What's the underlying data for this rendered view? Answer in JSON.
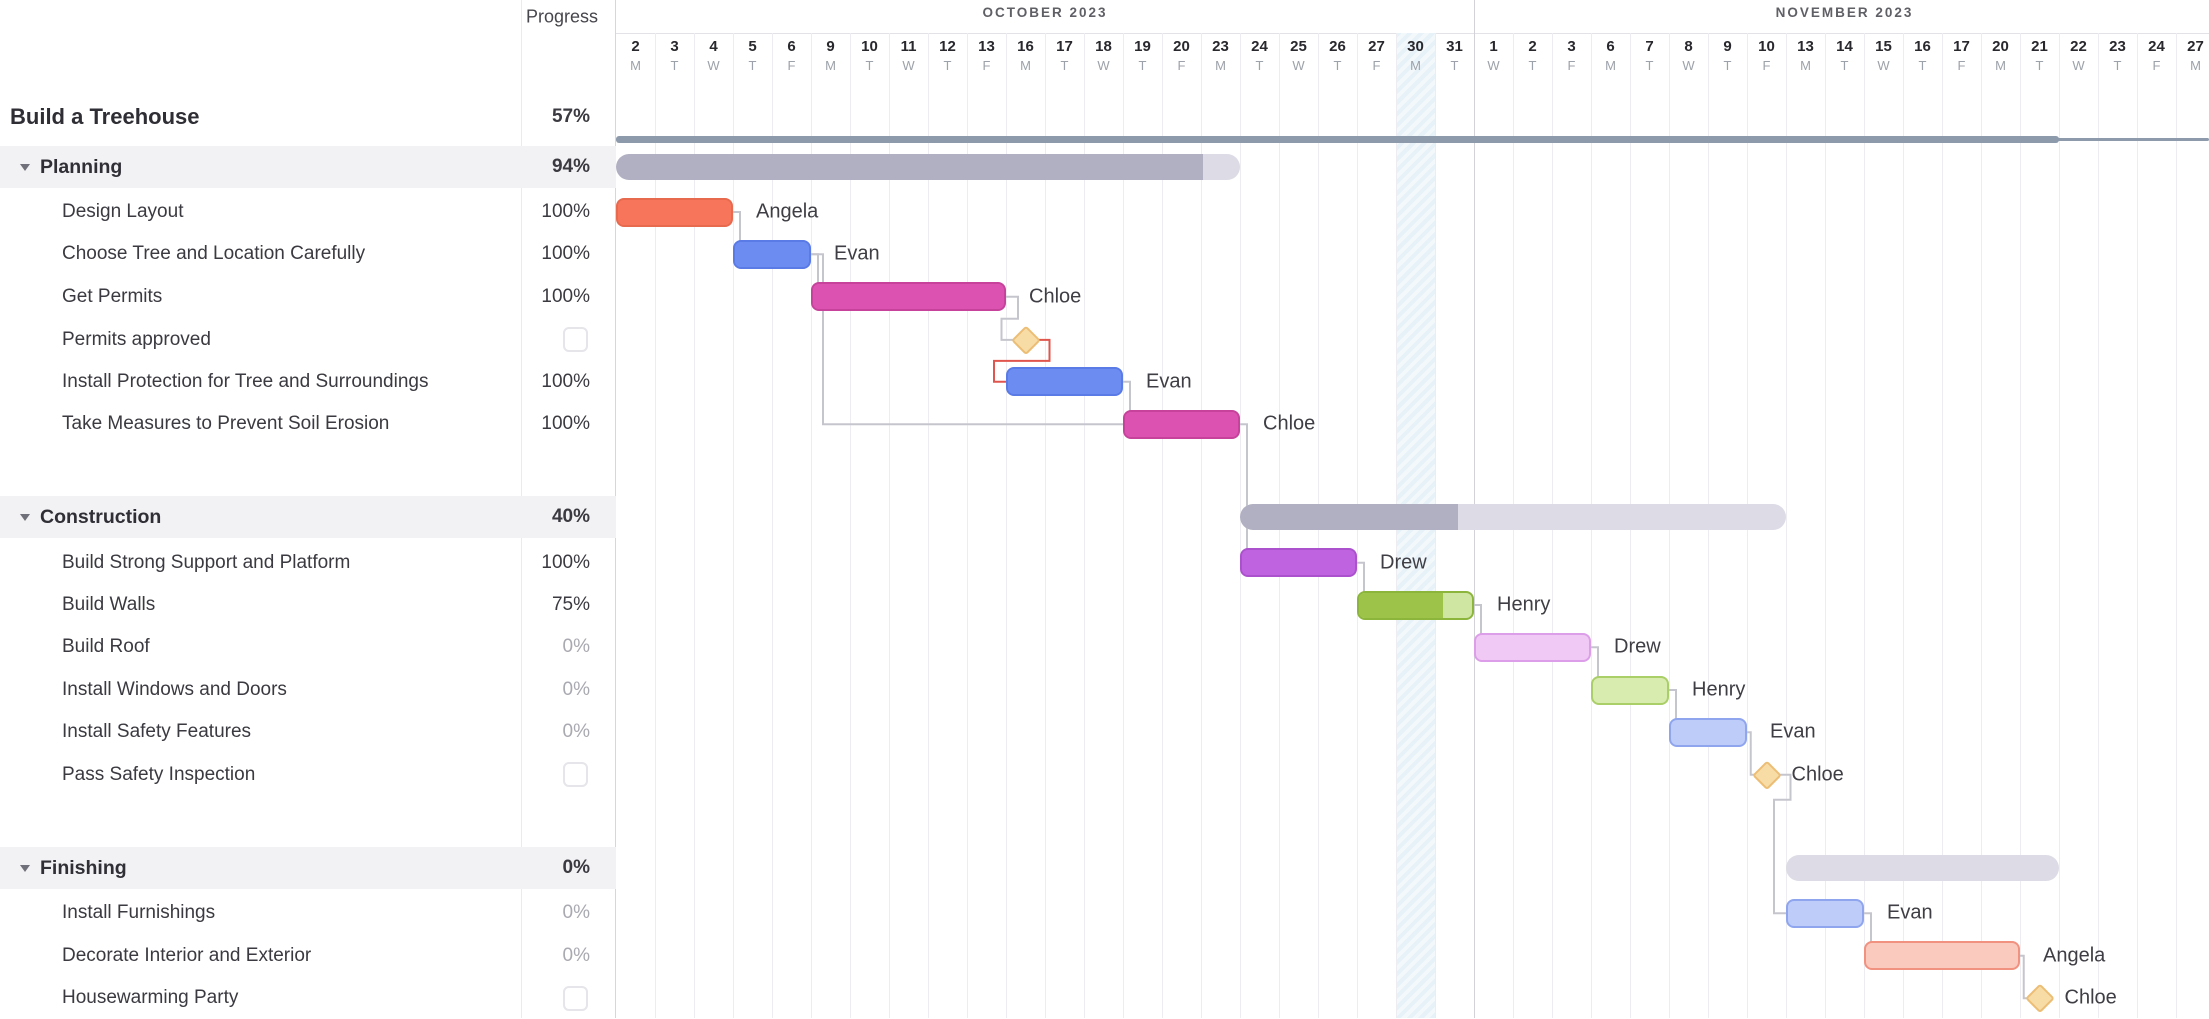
{
  "app": {
    "progress_header": "Progress"
  },
  "timeline": {
    "months": [
      {
        "label": "OCTOBER 2023",
        "days": [
          [
            "2",
            "M"
          ],
          [
            "3",
            "T"
          ],
          [
            "4",
            "W"
          ],
          [
            "5",
            "T"
          ],
          [
            "6",
            "F"
          ],
          [
            "9",
            "M"
          ],
          [
            "10",
            "T"
          ],
          [
            "11",
            "W"
          ],
          [
            "12",
            "T"
          ],
          [
            "13",
            "F"
          ],
          [
            "16",
            "M"
          ],
          [
            "17",
            "T"
          ],
          [
            "18",
            "W"
          ],
          [
            "19",
            "T"
          ],
          [
            "20",
            "F"
          ],
          [
            "23",
            "M"
          ],
          [
            "24",
            "T"
          ],
          [
            "25",
            "W"
          ],
          [
            "26",
            "T"
          ],
          [
            "27",
            "F"
          ],
          [
            "30",
            "M"
          ],
          [
            "31",
            "T"
          ]
        ]
      },
      {
        "label": "NOVEMBER 2023",
        "days": [
          [
            "1",
            "W"
          ],
          [
            "2",
            "T"
          ],
          [
            "3",
            "F"
          ],
          [
            "6",
            "M"
          ],
          [
            "7",
            "T"
          ],
          [
            "8",
            "W"
          ],
          [
            "9",
            "T"
          ],
          [
            "10",
            "F"
          ],
          [
            "13",
            "M"
          ],
          [
            "14",
            "T"
          ],
          [
            "15",
            "W"
          ],
          [
            "16",
            "T"
          ],
          [
            "17",
            "F"
          ],
          [
            "20",
            "M"
          ],
          [
            "21",
            "T"
          ],
          [
            "22",
            "W"
          ],
          [
            "23",
            "T"
          ],
          [
            "24",
            "F"
          ],
          [
            "27",
            "M"
          ]
        ]
      }
    ],
    "today": {
      "day": "30",
      "month": "October 2023",
      "column_index": 20
    }
  },
  "tasks": [
    {
      "id": "project",
      "level": "project",
      "name": "Build a Treehouse",
      "progress": "57%",
      "bar": {
        "kind": "project",
        "start": 0,
        "span": 37,
        "dates": "Oct 2 – Nov 21"
      }
    },
    {
      "id": "planning",
      "level": "section",
      "name": "Planning",
      "progress": "94%",
      "bar": {
        "kind": "group",
        "start": 0,
        "span": 16,
        "fraction": 0.94,
        "dates": "Oct 2 – Oct 23"
      }
    },
    {
      "id": "design-layout",
      "level": "task",
      "name": "Design Layout",
      "progress": "100%",
      "bar": {
        "kind": "bar",
        "start": 0,
        "span": 3,
        "color": "coral",
        "fraction": 1,
        "assignee": "Angela",
        "dates": "Oct 2 – Oct 4"
      }
    },
    {
      "id": "choose-tree",
      "level": "task",
      "name": "Choose Tree and Location Carefully",
      "progress": "100%",
      "bar": {
        "kind": "bar",
        "start": 3,
        "span": 2,
        "color": "blue",
        "fraction": 1,
        "assignee": "Evan",
        "dates": "Oct 5 – Oct 6"
      }
    },
    {
      "id": "get-permits",
      "level": "task",
      "name": "Get Permits",
      "progress": "100%",
      "bar": {
        "kind": "bar",
        "start": 5,
        "span": 5,
        "color": "magenta",
        "fraction": 1,
        "assignee": "Chloe",
        "dates": "Oct 9 – Oct 13"
      }
    },
    {
      "id": "permits-approved",
      "level": "task",
      "name": "Permits approved",
      "checkbox": true,
      "bar": {
        "kind": "milestone",
        "at": 10,
        "dates": "Oct 16"
      }
    },
    {
      "id": "install-protection",
      "level": "task",
      "name": "Install Protection for Tree and Surroundings",
      "progress": "100%",
      "bar": {
        "kind": "bar",
        "start": 10,
        "span": 3,
        "color": "blue",
        "fraction": 1,
        "assignee": "Evan",
        "dates": "Oct 16 – Oct 18"
      }
    },
    {
      "id": "take-measures",
      "level": "task",
      "name": "Take Measures to Prevent Soil Erosion",
      "progress": "100%",
      "bar": {
        "kind": "bar",
        "start": 13,
        "span": 3,
        "color": "magenta",
        "fraction": 1,
        "assignee": "Chloe",
        "dates": "Oct 19 – Oct 23"
      }
    },
    {
      "id": "construction",
      "level": "section",
      "name": "Construction",
      "progress": "40%",
      "bar": {
        "kind": "group",
        "start": 16,
        "span": 14,
        "fraction": 0.4,
        "dates": "Oct 24 – Nov 10"
      }
    },
    {
      "id": "build-support",
      "level": "task",
      "name": "Build Strong Support and Platform",
      "progress": "100%",
      "bar": {
        "kind": "bar",
        "start": 16,
        "span": 3,
        "color": "purple",
        "fraction": 1,
        "assignee": "Drew",
        "dates": "Oct 24 – Oct 26"
      }
    },
    {
      "id": "build-walls",
      "level": "task",
      "name": "Build Walls",
      "progress": "75%",
      "bar": {
        "kind": "bar",
        "start": 19,
        "span": 3,
        "color": "green",
        "fraction": 0.75,
        "assignee": "Henry",
        "dates": "Oct 27 – Oct 31"
      }
    },
    {
      "id": "build-roof",
      "level": "task",
      "name": "Build Roof",
      "progress": "0%",
      "muted": true,
      "bar": {
        "kind": "bar",
        "start": 22,
        "span": 3,
        "color": "lavender",
        "fraction": 0,
        "assignee": "Drew",
        "dates": "Nov 1 – Nov 3"
      }
    },
    {
      "id": "install-windows",
      "level": "task",
      "name": "Install Windows and Doors",
      "progress": "0%",
      "muted": true,
      "bar": {
        "kind": "bar",
        "start": 25,
        "span": 2,
        "color": "lightgreen",
        "fraction": 0,
        "assignee": "Henry",
        "dates": "Nov 6 – Nov 7"
      }
    },
    {
      "id": "install-safety",
      "level": "task",
      "name": "Install Safety Features",
      "progress": "0%",
      "muted": true,
      "bar": {
        "kind": "bar",
        "start": 27,
        "span": 2,
        "color": "lightblue",
        "fraction": 0,
        "assignee": "Evan",
        "dates": "Nov 8 – Nov 9"
      }
    },
    {
      "id": "pass-safety",
      "level": "task",
      "name": "Pass Safety Inspection",
      "checkbox": true,
      "bar": {
        "kind": "milestone",
        "at": 29,
        "assignee": "Chloe",
        "dates": "Nov 10"
      }
    },
    {
      "id": "finishing",
      "level": "section",
      "name": "Finishing",
      "progress": "0%",
      "bar": {
        "kind": "group",
        "start": 30,
        "span": 7,
        "fraction": 0,
        "dates": "Nov 13 – Nov 21"
      }
    },
    {
      "id": "install-furnishings",
      "level": "task",
      "name": "Install Furnishings",
      "progress": "0%",
      "muted": true,
      "bar": {
        "kind": "bar",
        "start": 30,
        "span": 2,
        "color": "lightblue",
        "fraction": 0,
        "assignee": "Evan",
        "dates": "Nov 13 – Nov 14"
      }
    },
    {
      "id": "decorate",
      "level": "task",
      "name": "Decorate Interior and Exterior",
      "progress": "0%",
      "muted": true,
      "bar": {
        "kind": "bar",
        "start": 32,
        "span": 4,
        "color": "salmon",
        "fraction": 0,
        "assignee": "Angela",
        "dates": "Nov 15 – Nov 20"
      }
    },
    {
      "id": "housewarming",
      "level": "task",
      "name": "Housewarming Party",
      "checkbox": true,
      "bar": {
        "kind": "milestone",
        "at": 36,
        "assignee": "Chloe",
        "dates": "Nov 21"
      }
    }
  ],
  "dependencies": [
    {
      "from": "design-layout",
      "to": "choose-tree"
    },
    {
      "from": "choose-tree",
      "to": "get-permits"
    },
    {
      "from": "choose-tree",
      "to": "take-measures"
    },
    {
      "from": "get-permits",
      "to": "permits-approved"
    },
    {
      "from": "permits-approved",
      "to": "install-protection",
      "color": "red"
    },
    {
      "from": "install-protection",
      "to": "take-measures"
    },
    {
      "from": "take-measures",
      "to": "build-support"
    },
    {
      "from": "build-support",
      "to": "build-walls"
    },
    {
      "from": "build-walls",
      "to": "build-roof"
    },
    {
      "from": "build-roof",
      "to": "install-windows"
    },
    {
      "from": "install-windows",
      "to": "install-safety"
    },
    {
      "from": "install-safety",
      "to": "pass-safety"
    },
    {
      "from": "pass-safety",
      "to": "install-furnishings"
    },
    {
      "from": "install-furnishings",
      "to": "decorate"
    },
    {
      "from": "decorate",
      "to": "housewarming"
    }
  ],
  "colors": {
    "coral": {
      "bg": "#F7765B",
      "fill": "#F7765B",
      "border": "#E7694E"
    },
    "blue": {
      "bg": "#6C8CF2",
      "fill": "#6C8CF2",
      "border": "#5A7AE6"
    },
    "magenta": {
      "bg": "#DC52B0",
      "fill": "#DC52B0",
      "border": "#C6429B"
    },
    "purple": {
      "bg": "#BF63E0",
      "fill": "#BF63E0",
      "border": "#AC51CE"
    },
    "green": {
      "bg": "#CFE6A3",
      "fill": "#9DC448",
      "border": "#8CB53B"
    },
    "lavender": {
      "bg": "#F0CAF4",
      "fill": "#F0CAF4",
      "border": "#DC9EE9"
    },
    "lightgreen": {
      "bg": "#D9ECAF",
      "fill": "#D9ECAF",
      "border": "#AACE68"
    },
    "lightblue": {
      "bg": "#BDCCF8",
      "fill": "#BDCCF8",
      "border": "#8FA5EE"
    },
    "salmon": {
      "bg": "#FBCABE",
      "fill": "#FBCABE",
      "border": "#F19180"
    },
    "group_dark": "#B1B0C2",
    "group_light": "#DCDBE6",
    "project_bar": "#8D9AAB",
    "milestone_fill": "#F8DCA6",
    "milestone_border": "#ECBE75",
    "connector": "#C5C5CD",
    "connector_red": "#E0554E"
  }
}
